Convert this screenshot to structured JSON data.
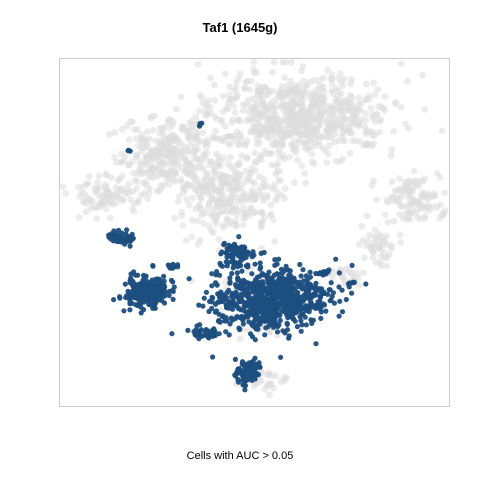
{
  "chart_data": {
    "type": "scatter",
    "title": "Taf1 (1645g)",
    "xlabel": "Cells with AUC > 0.05",
    "ylabel": "",
    "grid": false,
    "legend": "none",
    "colors": {
      "highlight": "#1c4e80",
      "background": "#dcdcdc",
      "frame": "#cccccc"
    },
    "series": [
      {
        "role": "background",
        "clusters": [
          {
            "cx": 300,
            "cy": 115,
            "rx": 90,
            "ry": 40,
            "n": 700
          },
          {
            "cx": 165,
            "cy": 155,
            "rx": 45,
            "ry": 35,
            "n": 280
          },
          {
            "cx": 230,
            "cy": 190,
            "rx": 55,
            "ry": 45,
            "n": 320
          },
          {
            "cx": 105,
            "cy": 195,
            "rx": 35,
            "ry": 18,
            "n": 90
          },
          {
            "cx": 412,
            "cy": 200,
            "rx": 30,
            "ry": 25,
            "n": 110
          },
          {
            "cx": 375,
            "cy": 245,
            "rx": 18,
            "ry": 20,
            "n": 45
          },
          {
            "cx": 345,
            "cy": 275,
            "rx": 14,
            "ry": 10,
            "n": 25
          },
          {
            "cx": 258,
            "cy": 305,
            "rx": 40,
            "ry": 32,
            "n": 90
          },
          {
            "cx": 265,
            "cy": 380,
            "rx": 22,
            "ry": 14,
            "n": 30
          }
        ]
      },
      {
        "role": "highlight",
        "clusters": [
          {
            "cx": 270,
            "cy": 300,
            "rx": 58,
            "ry": 32,
            "n": 750
          },
          {
            "cx": 238,
            "cy": 255,
            "rx": 18,
            "ry": 12,
            "n": 70
          },
          {
            "cx": 146,
            "cy": 292,
            "rx": 22,
            "ry": 17,
            "n": 220
          },
          {
            "cx": 205,
            "cy": 333,
            "rx": 12,
            "ry": 6,
            "n": 40
          },
          {
            "cx": 124,
            "cy": 238,
            "rx": 15,
            "ry": 6,
            "n": 50
          },
          {
            "cx": 248,
            "cy": 370,
            "rx": 15,
            "ry": 12,
            "n": 90
          },
          {
            "cx": 172,
            "cy": 266,
            "rx": 5,
            "ry": 4,
            "n": 14
          },
          {
            "cx": 325,
            "cy": 273,
            "rx": 5,
            "ry": 4,
            "n": 10
          },
          {
            "cx": 352,
            "cy": 282,
            "rx": 4,
            "ry": 3,
            "n": 6
          },
          {
            "cx": 201,
            "cy": 125,
            "rx": 2,
            "ry": 2,
            "n": 4
          },
          {
            "cx": 129,
            "cy": 150,
            "rx": 2,
            "ry": 2,
            "n": 3
          }
        ]
      }
    ]
  }
}
